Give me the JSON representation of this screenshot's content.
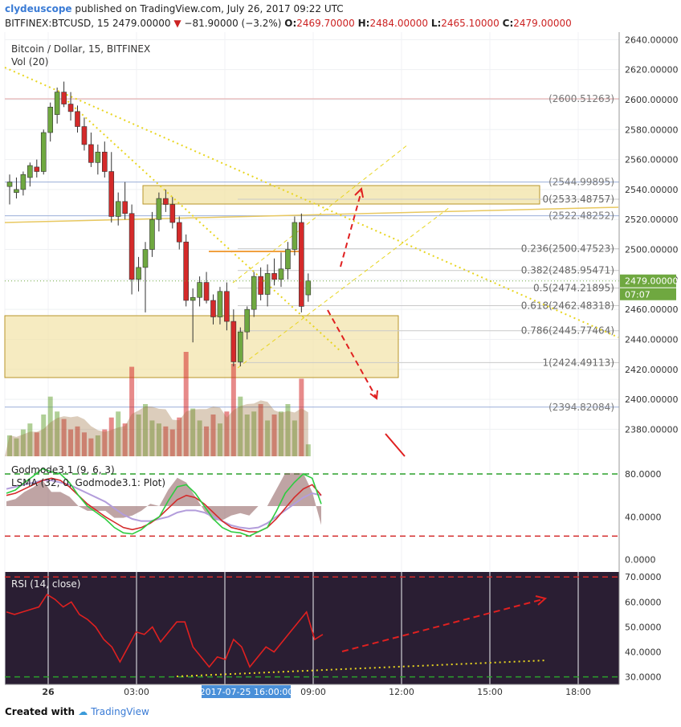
{
  "header": {
    "user": "clydeuscope",
    "published": "published on TradingView.com, July 26, 2017 09:22 UTC",
    "symbol": "BITFINEX:BTCUSD, 15",
    "price": "2479.00000",
    "change": "−81.90000 (−3.2%)",
    "o_label": "O:",
    "o": "2469.70000",
    "h_label": "H:",
    "h": "2484.00000",
    "l_label": "L:",
    "l": "2465.10000",
    "c_label": "C:",
    "c": "2479.00000"
  },
  "footer": {
    "created": "Created with",
    "brand": "TradingView"
  },
  "colors": {
    "up": "#6fa840",
    "down": "#d42a2a",
    "zone": "#f2e3a6",
    "volume_ma": "#9a6f40"
  },
  "chart_data": [
    {
      "type": "candlestick",
      "title": "Bitcoin / Dollar, 15, BITFINEX",
      "subtitle": "Vol (20)",
      "ylim": [
        2362,
        2645
      ],
      "y_ticks": [
        "2640.00000",
        "2620.00000",
        "2600.00000",
        "2580.00000",
        "2560.00000",
        "2540.00000",
        "2520.00000",
        "2500.00000",
        "2480.00000",
        "2460.00000",
        "2440.00000",
        "2420.00000",
        "2400.00000",
        "2380.00000"
      ],
      "x_ticks": [
        "26",
        "03:00",
        "2017-07-25 16:00:00",
        "09:00",
        "12:00",
        "15:00",
        "18:00"
      ],
      "last_price": "2479.00000",
      "countdown": "07:07",
      "candles": [
        {
          "o": 2542,
          "h": 2550,
          "l": 2530,
          "c": 2545
        },
        {
          "o": 2538,
          "h": 2548,
          "l": 2534,
          "c": 2540
        },
        {
          "o": 2540,
          "h": 2552,
          "l": 2536,
          "c": 2550
        },
        {
          "o": 2548,
          "h": 2558,
          "l": 2542,
          "c": 2556
        },
        {
          "o": 2555,
          "h": 2560,
          "l": 2548,
          "c": 2552
        },
        {
          "o": 2552,
          "h": 2580,
          "l": 2550,
          "c": 2578
        },
        {
          "o": 2578,
          "h": 2598,
          "l": 2572,
          "c": 2595
        },
        {
          "o": 2590,
          "h": 2608,
          "l": 2584,
          "c": 2605
        },
        {
          "o": 2605,
          "h": 2612,
          "l": 2595,
          "c": 2597
        },
        {
          "o": 2597,
          "h": 2605,
          "l": 2586,
          "c": 2592
        },
        {
          "o": 2592,
          "h": 2596,
          "l": 2578,
          "c": 2582
        },
        {
          "o": 2582,
          "h": 2588,
          "l": 2566,
          "c": 2570
        },
        {
          "o": 2570,
          "h": 2578,
          "l": 2555,
          "c": 2558
        },
        {
          "o": 2558,
          "h": 2570,
          "l": 2550,
          "c": 2565
        },
        {
          "o": 2565,
          "h": 2572,
          "l": 2548,
          "c": 2552
        },
        {
          "o": 2552,
          "h": 2565,
          "l": 2518,
          "c": 2522
        },
        {
          "o": 2522,
          "h": 2538,
          "l": 2516,
          "c": 2532
        },
        {
          "o": 2532,
          "h": 2545,
          "l": 2520,
          "c": 2524
        },
        {
          "o": 2524,
          "h": 2530,
          "l": 2470,
          "c": 2480
        },
        {
          "o": 2480,
          "h": 2495,
          "l": 2472,
          "c": 2488
        },
        {
          "o": 2488,
          "h": 2505,
          "l": 2458,
          "c": 2500
        },
        {
          "o": 2500,
          "h": 2525,
          "l": 2495,
          "c": 2520
        },
        {
          "o": 2520,
          "h": 2538,
          "l": 2512,
          "c": 2534
        },
        {
          "o": 2534,
          "h": 2540,
          "l": 2525,
          "c": 2530
        },
        {
          "o": 2530,
          "h": 2535,
          "l": 2514,
          "c": 2518
        },
        {
          "o": 2518,
          "h": 2522,
          "l": 2500,
          "c": 2505
        },
        {
          "o": 2505,
          "h": 2510,
          "l": 2462,
          "c": 2466
        },
        {
          "o": 2466,
          "h": 2474,
          "l": 2438,
          "c": 2468
        },
        {
          "o": 2468,
          "h": 2482,
          "l": 2462,
          "c": 2478
        },
        {
          "o": 2478,
          "h": 2485,
          "l": 2464,
          "c": 2466
        },
        {
          "o": 2466,
          "h": 2470,
          "l": 2450,
          "c": 2455
        },
        {
          "o": 2455,
          "h": 2475,
          "l": 2450,
          "c": 2472
        },
        {
          "o": 2472,
          "h": 2478,
          "l": 2446,
          "c": 2452
        },
        {
          "o": 2452,
          "h": 2460,
          "l": 2422,
          "c": 2425
        },
        {
          "o": 2425,
          "h": 2448,
          "l": 2422,
          "c": 2445
        },
        {
          "o": 2445,
          "h": 2462,
          "l": 2440,
          "c": 2460
        },
        {
          "o": 2460,
          "h": 2485,
          "l": 2455,
          "c": 2482
        },
        {
          "o": 2482,
          "h": 2488,
          "l": 2466,
          "c": 2470
        },
        {
          "o": 2470,
          "h": 2490,
          "l": 2462,
          "c": 2484
        },
        {
          "o": 2484,
          "h": 2494,
          "l": 2476,
          "c": 2480
        },
        {
          "o": 2480,
          "h": 2498,
          "l": 2475,
          "c": 2487
        },
        {
          "o": 2487,
          "h": 2505,
          "l": 2480,
          "c": 2500
        },
        {
          "o": 2500,
          "h": 2522,
          "l": 2496,
          "c": 2518
        },
        {
          "o": 2518,
          "h": 2524,
          "l": 2458,
          "c": 2462
        },
        {
          "o": 2469.7,
          "h": 2484,
          "l": 2465.1,
          "c": 2479
        }
      ],
      "volume": [
        14,
        12,
        18,
        22,
        16,
        28,
        40,
        30,
        25,
        18,
        20,
        16,
        12,
        14,
        18,
        26,
        30,
        22,
        60,
        28,
        35,
        24,
        22,
        20,
        18,
        26,
        70,
        32,
        24,
        20,
        28,
        22,
        30,
        62,
        40,
        28,
        30,
        35,
        24,
        28,
        30,
        35,
        24,
        52,
        8
      ],
      "fib_levels": [
        {
          "label": "0(2533.48757)",
          "value": 2533.48757
        },
        {
          "label": "0.236(2500.47523)",
          "value": 2500.47523
        },
        {
          "label": "0.382(2485.95471)",
          "value": 2485.95471
        },
        {
          "label": "0.5(2474.21895)",
          "value": 2474.21895
        },
        {
          "label": "0.618(2462.48318)",
          "value": 2462.48318
        },
        {
          "label": "0.786(2445.77464)",
          "value": 2445.77464
        },
        {
          "label": "1(2424.49113)",
          "value": 2424.49113
        }
      ],
      "horizontal_levels": [
        {
          "label": "(2600.51263)",
          "value": 2600.51263
        },
        {
          "label": "(2544.99895)",
          "value": 2544.99895
        },
        {
          "label": "(2522.48252)",
          "value": 2522.48252
        },
        {
          "label": "(2394.82084)",
          "value": 2394.82084
        }
      ]
    },
    {
      "type": "line",
      "title": "Godmode3.1 (9, 6, 3)",
      "subtitle": "LSMA (32, 0, Godmode3.1: Plot)",
      "ylim": [
        -10,
        95
      ],
      "y_ticks": [
        "80.0000",
        "40.0000",
        "0.0000"
      ],
      "series": [
        {
          "values": [
            62,
            65,
            72,
            78,
            85,
            82,
            80,
            72,
            60,
            50,
            44,
            38,
            30,
            25,
            24,
            28,
            35,
            40,
            55,
            68,
            70,
            62,
            50,
            38,
            30,
            26,
            25,
            22,
            26,
            30,
            45,
            62,
            72,
            80,
            76,
            52
          ]
        },
        {
          "values": [
            60,
            62,
            66,
            70,
            74,
            76,
            74,
            68,
            60,
            52,
            46,
            40,
            35,
            30,
            28,
            30,
            34,
            40,
            48,
            56,
            60,
            58,
            52,
            44,
            36,
            30,
            28,
            26,
            26,
            30,
            38,
            48,
            58,
            66,
            70,
            60
          ]
        },
        {
          "values": [
            66,
            68,
            70,
            72,
            74,
            74,
            72,
            70,
            66,
            62,
            58,
            54,
            48,
            42,
            38,
            36,
            36,
            38,
            40,
            44,
            46,
            46,
            44,
            40,
            36,
            32,
            30,
            29,
            30,
            34,
            40,
            46,
            52,
            58,
            62,
            60
          ]
        }
      ]
    },
    {
      "type": "line",
      "title": "RSI (14, close)",
      "ylim": [
        27,
        72
      ],
      "y_ticks": [
        "70.0000",
        "60.0000",
        "50.0000",
        "40.0000",
        "30.0000"
      ],
      "series": [
        {
          "values": [
            56,
            55,
            56,
            57,
            58,
            63,
            61,
            58,
            60,
            55,
            53,
            50,
            45,
            42,
            36,
            42,
            48,
            47,
            50,
            44,
            48,
            52,
            52,
            42,
            38,
            34,
            38,
            37,
            45,
            42,
            34,
            38,
            42,
            40,
            44,
            48,
            52,
            56,
            45,
            47
          ]
        }
      ]
    }
  ]
}
